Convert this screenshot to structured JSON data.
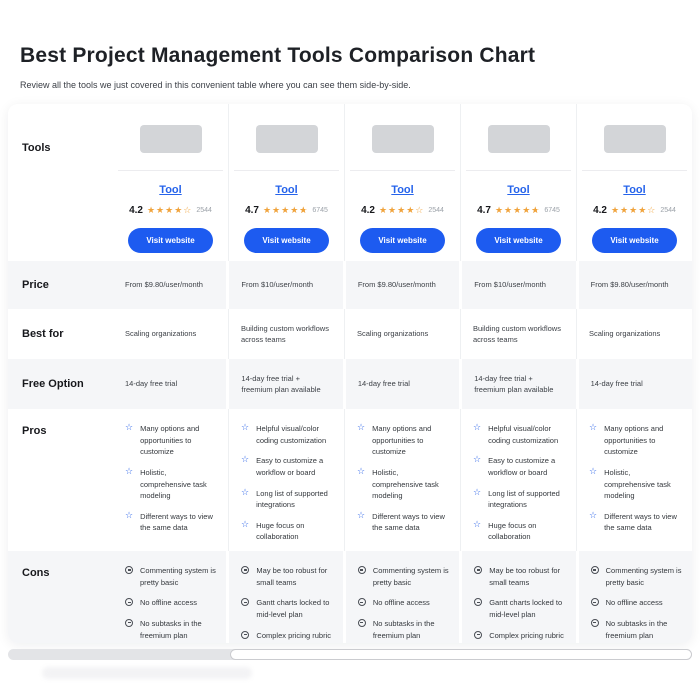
{
  "header": {
    "title": "Best Project Management Tools Comparison Chart",
    "subtitle": "Review all the tools we just covered in this convenient table where you can see them side-by-side."
  },
  "colors": {
    "link_blue": "#2563eb",
    "button_blue": "#1d5bf0",
    "star_gold": "#f0a33c",
    "row_band_gray": "#f5f6f8"
  },
  "icons": {
    "pro_star": "☆",
    "star_full_glyph": "★",
    "star_empty_glyph": "☆"
  },
  "table": {
    "row_labels": [
      "Tools",
      "Price",
      "Best for",
      "Free Option",
      "Pros",
      "Cons"
    ],
    "columns": [
      {
        "name": "Tool",
        "rating": "4.2",
        "stars_full": "★★★★",
        "last_star": "empty",
        "reviews": "2544",
        "visit_label": "Visit website",
        "price": "From $9.80/user/month",
        "best_for": "Scaling organizations",
        "free_option": "14-day free trial",
        "pros": [
          "Many options and opportunities to customize",
          "Holistic, comprehensive task modeling",
          "Different ways to view the same data"
        ],
        "cons": [
          "Commenting system is pretty basic",
          "No offline access",
          "No subtasks in the freemium plan"
        ]
      },
      {
        "name": "Tool",
        "rating": "4.7",
        "stars_full": "★★★★",
        "last_star": "half",
        "reviews": "6745",
        "visit_label": "Visit website",
        "price": "From $10/user/month",
        "best_for": "Building custom workflows across teams",
        "free_option": "14-day free trial + freemium plan available",
        "pros": [
          "Helpful visual/color coding customization",
          "Easy to customize a workflow or board",
          "Long list of supported integrations",
          "Huge focus on collaboration"
        ],
        "cons": [
          "May be too robust for small teams",
          "Gantt charts locked to mid-level plan",
          "Complex pricing rubric"
        ]
      },
      {
        "name": "Tool",
        "rating": "4.2",
        "stars_full": "★★★★",
        "last_star": "empty",
        "reviews": "2544",
        "visit_label": "Visit website",
        "price": "From $9.80/user/month",
        "best_for": "Scaling organizations",
        "free_option": "14-day free trial",
        "pros": [
          "Many options and opportunities to customize",
          "Holistic, comprehensive task modeling",
          "Different ways to view the same data"
        ],
        "cons": [
          "Commenting system is pretty basic",
          "No offline access",
          "No subtasks in the freemium plan"
        ]
      },
      {
        "name": "Tool",
        "rating": "4.7",
        "stars_full": "★★★★",
        "last_star": "half",
        "reviews": "6745",
        "visit_label": "Visit website",
        "price": "From $10/user/month",
        "best_for": "Building custom workflows across teams",
        "free_option": "14-day free trial + freemium plan available",
        "pros": [
          "Helpful visual/color coding customization",
          "Easy to customize a workflow or board",
          "Long list of supported integrations",
          "Huge focus on collaboration"
        ],
        "cons": [
          "May be too robust for small teams",
          "Gantt charts locked to mid-level plan",
          "Complex pricing rubric"
        ]
      },
      {
        "name": "Tool",
        "rating": "4.2",
        "stars_full": "★★★★",
        "last_star": "empty",
        "reviews": "2544",
        "visit_label": "Visit website",
        "price": "From $9.80/user/month",
        "best_for": "Scaling organizations",
        "free_option": "14-day free trial",
        "pros": [
          "Many options and opportunities to customize",
          "Holistic, comprehensive task modeling",
          "Different ways to view the same data"
        ],
        "cons": [
          "Commenting system is pretty basic",
          "No offline access",
          "No subtasks in the freemium plan"
        ]
      }
    ]
  }
}
